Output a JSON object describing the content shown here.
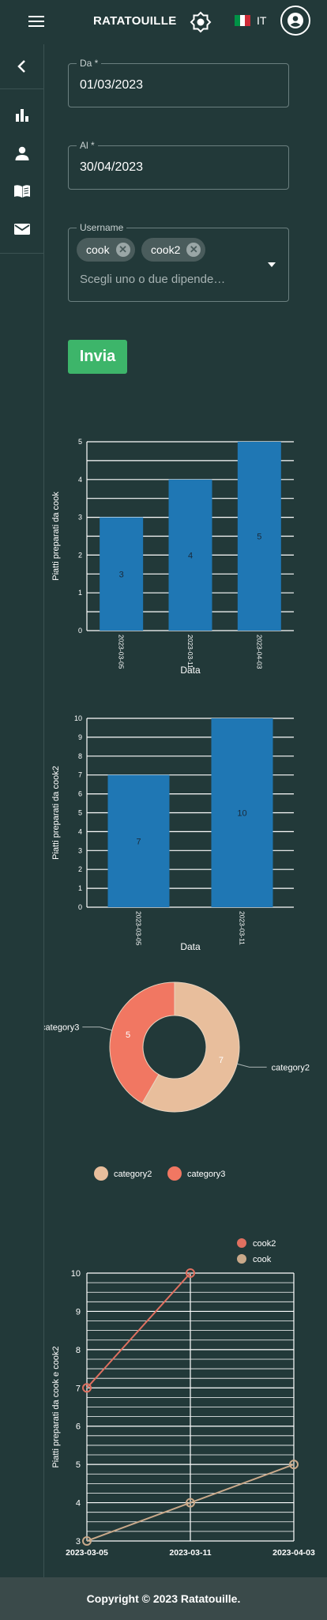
{
  "header": {
    "brand": "RATATOUILLE",
    "language": "IT",
    "flag_colors": [
      "#009246",
      "#ffffff",
      "#ce2b37"
    ]
  },
  "sidebar": {
    "items": [
      {
        "icon": "chevron-left-icon"
      },
      {
        "icon": "bar-chart-icon"
      },
      {
        "icon": "person-icon"
      },
      {
        "icon": "book-icon"
      },
      {
        "icon": "mail-icon"
      }
    ]
  },
  "form": {
    "from": {
      "label": "Da *",
      "value": "01/03/2023"
    },
    "to": {
      "label": "Al *",
      "value": "30/04/2023"
    },
    "username": {
      "label": "Username",
      "chips": [
        "cook",
        "cook2"
      ],
      "placeholder": "Scegli uno o due dipende…"
    },
    "submit_label": "Invia"
  },
  "chart_data": [
    {
      "type": "bar",
      "categories": [
        "2023-03-05",
        "2023-03-11",
        "2023-04-03"
      ],
      "values": [
        3,
        4,
        5
      ],
      "xlabel": "Data",
      "ylabel": "Piatti preparati da cook",
      "ylim": [
        0,
        5
      ],
      "yticks": [
        0,
        0.5,
        1,
        1.5,
        2,
        2.5,
        3,
        3.5,
        4,
        4.5,
        5
      ],
      "ytick_labels": [
        "0",
        "",
        "1",
        "",
        "2",
        "",
        "3",
        "",
        "4",
        "",
        "5"
      ],
      "color": "#1f77b4"
    },
    {
      "type": "bar",
      "categories": [
        "2023-03-05",
        "2023-03-11"
      ],
      "values": [
        7,
        10
      ],
      "xlabel": "Data",
      "ylabel": "Piatti preparati da cook2",
      "ylim": [
        0,
        10
      ],
      "yticks": [
        0,
        1,
        2,
        3,
        4,
        5,
        6,
        7,
        8,
        9,
        10
      ],
      "color": "#1f77b4"
    },
    {
      "type": "pie",
      "labels": [
        "category2",
        "category3"
      ],
      "values": [
        7,
        5
      ],
      "colors": [
        "#e8be9c",
        "#f17762"
      ],
      "legend": "bottom"
    },
    {
      "type": "line",
      "x": [
        "2023-03-05",
        "2023-03-11",
        "2023-04-03"
      ],
      "series": [
        {
          "name": "cook2",
          "values": [
            7,
            10,
            null
          ],
          "color": "#e07060"
        },
        {
          "name": "cook",
          "values": [
            3,
            4,
            5
          ],
          "color": "#c9a98a"
        }
      ],
      "xlabel": "Data",
      "ylabel": "Piatti preparati da cook e cook2",
      "ylim": [
        3,
        10
      ],
      "yticks": [
        3,
        4,
        5,
        6,
        7,
        8,
        9,
        10
      ],
      "legend": "top-right"
    }
  ],
  "footer": {
    "text": "Copyright © 2023 Ratatouille."
  }
}
